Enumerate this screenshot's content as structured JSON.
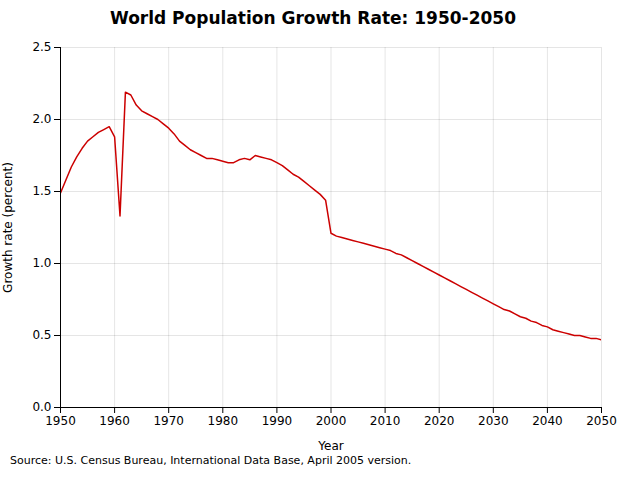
{
  "chart_data": {
    "type": "line",
    "title": "World Population Growth Rate: 1950-2050",
    "xlabel": "Year",
    "ylabel": "Growth rate (percent)",
    "caption": "Source: U.S. Census Bureau, International Data Base, April 2005 version.",
    "color": "#cc0000",
    "grid": true,
    "xlim": [
      1950,
      2050
    ],
    "ylim": [
      0.0,
      2.5
    ],
    "xticks": [
      1950,
      1960,
      1970,
      1980,
      1990,
      2000,
      2010,
      2020,
      2030,
      2040,
      2050
    ],
    "yticks": [
      {
        "value": 0.0,
        "label": "0.0"
      },
      0.5,
      {
        "value": 1.0,
        "label": "1.0"
      },
      1.5,
      {
        "value": 2.0,
        "label": "2.0"
      },
      2.5
    ],
    "x": [
      1950,
      1951,
      1952,
      1953,
      1954,
      1955,
      1956,
      1957,
      1958,
      1959,
      1960,
      1961,
      1962,
      1963,
      1964,
      1965,
      1966,
      1967,
      1968,
      1969,
      1970,
      1971,
      1972,
      1973,
      1974,
      1975,
      1976,
      1977,
      1978,
      1979,
      1980,
      1981,
      1982,
      1983,
      1984,
      1985,
      1986,
      1987,
      1988,
      1989,
      1990,
      1991,
      1992,
      1993,
      1994,
      1995,
      1996,
      1997,
      1998,
      1999,
      2000,
      2001,
      2002,
      2003,
      2004,
      2005,
      2006,
      2007,
      2008,
      2009,
      2010,
      2011,
      2012,
      2013,
      2014,
      2015,
      2016,
      2017,
      2018,
      2019,
      2020,
      2021,
      2022,
      2023,
      2024,
      2025,
      2026,
      2027,
      2028,
      2029,
      2030,
      2031,
      2032,
      2033,
      2034,
      2035,
      2036,
      2037,
      2038,
      2039,
      2040,
      2041,
      2042,
      2043,
      2044,
      2045,
      2046,
      2047,
      2048,
      2049,
      2050
    ],
    "values": [
      1.49,
      1.58,
      1.67,
      1.74,
      1.8,
      1.85,
      1.88,
      1.91,
      1.93,
      1.95,
      1.88,
      1.33,
      2.19,
      2.17,
      2.1,
      2.06,
      2.04,
      2.02,
      2.0,
      1.97,
      1.94,
      1.9,
      1.85,
      1.82,
      1.79,
      1.77,
      1.75,
      1.73,
      1.73,
      1.72,
      1.71,
      1.7,
      1.7,
      1.72,
      1.73,
      1.72,
      1.75,
      1.74,
      1.73,
      1.72,
      1.7,
      1.68,
      1.65,
      1.62,
      1.6,
      1.57,
      1.54,
      1.51,
      1.48,
      1.44,
      1.21,
      1.19,
      1.18,
      1.17,
      1.16,
      1.15,
      1.14,
      1.13,
      1.12,
      1.11,
      1.1,
      1.09,
      1.07,
      1.06,
      1.04,
      1.02,
      1.0,
      0.98,
      0.96,
      0.94,
      0.92,
      0.9,
      0.88,
      0.86,
      0.84,
      0.82,
      0.8,
      0.78,
      0.76,
      0.74,
      0.72,
      0.7,
      0.68,
      0.67,
      0.65,
      0.63,
      0.62,
      0.6,
      0.59,
      0.57,
      0.56,
      0.54,
      0.53,
      0.52,
      0.51,
      0.5,
      0.5,
      0.49,
      0.48,
      0.48,
      0.47
    ]
  }
}
